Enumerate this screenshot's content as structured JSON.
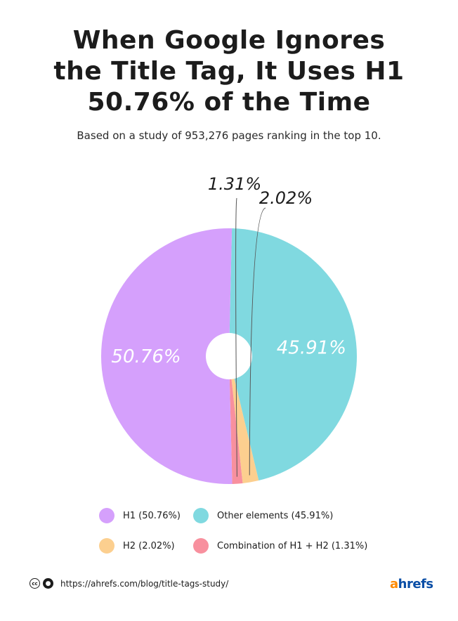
{
  "title_lines": [
    "When Google Ignores",
    "the Title Tag, It Uses H1",
    "50.76% of the Time"
  ],
  "subtitle": "Based on a study of 953,276 pages ranking in the top 10.",
  "chart_data": {
    "type": "pie",
    "donut": true,
    "categories": [
      "H1",
      "Other elements",
      "H2",
      "Combination of H1 + H2"
    ],
    "values": [
      50.76,
      45.91,
      2.02,
      1.31
    ],
    "slice_labels": [
      "50.76%",
      "45.91%",
      "2.02%",
      "1.31%"
    ],
    "legend_labels": [
      "H1 (50.76%)",
      "Other elements (45.91%)",
      "H2 (2.02%)",
      "Combination of H1 + H2 (1.31%)"
    ],
    "colors": [
      "#d5a0fc",
      "#80d9e0",
      "#fccf8f",
      "#f8909e"
    ],
    "legend_position": "bottom"
  },
  "footer": {
    "url": "https://ahrefs.com/blog/title-tags-study/",
    "license_icons": [
      "cc-icon",
      "attribution-icon"
    ],
    "brand": "ahrefs"
  }
}
